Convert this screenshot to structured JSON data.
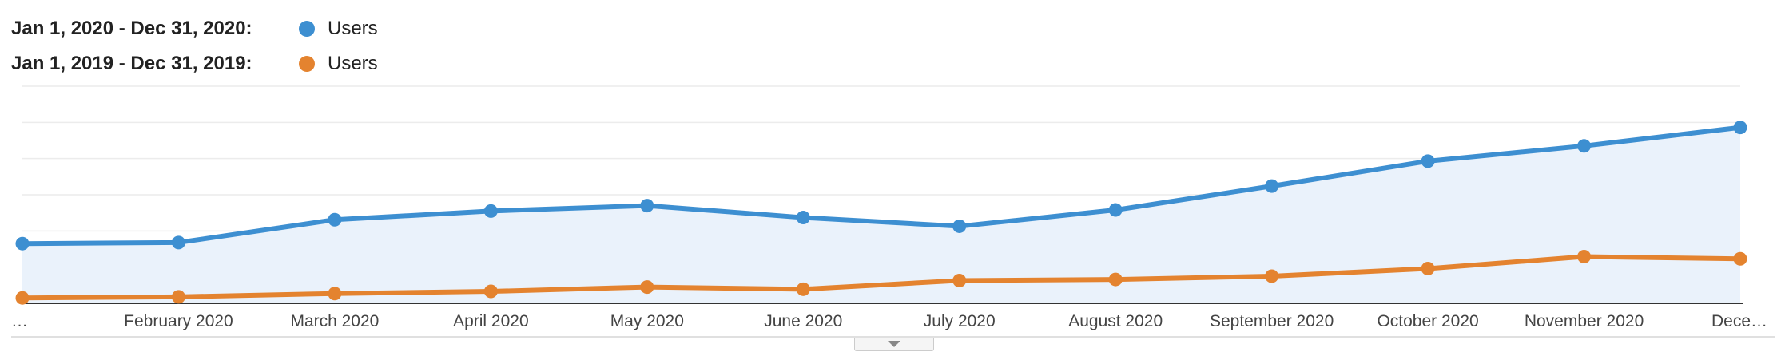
{
  "legend": {
    "items": [
      {
        "range": "Jan 1, 2020 - Dec 31, 2020:",
        "label": "Users",
        "color": "#3d8fd1"
      },
      {
        "range": "Jan 1, 2019 - Dec 31, 2019:",
        "label": "Users",
        "color": "#e4832f"
      }
    ]
  },
  "chart_data": {
    "type": "line",
    "categories": [
      "…",
      "February 2020",
      "March 2020",
      "April 2020",
      "May 2020",
      "June 2020",
      "July 2020",
      "August 2020",
      "September 2020",
      "October 2020",
      "November 2020",
      "Dece…"
    ],
    "series": [
      {
        "name": "Users",
        "range": "Jan 1, 2020 - Dec 31, 2020",
        "color": "#3d8fd1",
        "fill": "area",
        "values": [
          55,
          56,
          77,
          85,
          90,
          79,
          71,
          86,
          108,
          131,
          145,
          162
        ]
      },
      {
        "name": "Users",
        "range": "Jan 1, 2019 - Dec 31, 2019",
        "color": "#e4832f",
        "values": [
          5,
          6,
          9,
          11,
          15,
          13,
          21,
          22,
          25,
          32,
          43,
          41
        ]
      }
    ],
    "ylim": [
      0,
      200
    ],
    "grid": true,
    "legend_position": "top-left"
  }
}
